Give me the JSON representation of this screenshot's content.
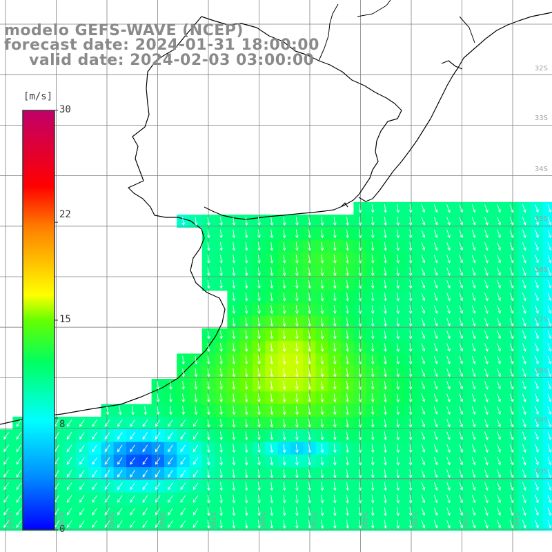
{
  "title": {
    "model": "modelo GEFS-WAVE (NCEP)",
    "forecast": "forecast date: 2024-01-31 18:00:00",
    "valid": "valid date: 2024-02-03 03:00:00"
  },
  "colorbar": {
    "unit": "[m/s]",
    "ticks": [
      "30",
      "22",
      "15",
      "8",
      "0"
    ],
    "tick_values": [
      30,
      22,
      15,
      8,
      0
    ],
    "range": [
      0,
      30
    ],
    "colors": [
      "#0000ff",
      "#00a0ff",
      "#00ffff",
      "#00ff00",
      "#ffff00",
      "#ff8000",
      "#ff0000",
      "#c0006a"
    ]
  },
  "map": {
    "variable": "wind speed",
    "lat_labels": [
      "32S",
      "33S",
      "34S",
      "35S",
      "36S",
      "37S",
      "38S",
      "39S",
      "40S"
    ],
    "lon_labels": [
      "61W",
      "60W",
      "59W",
      "58W",
      "57W",
      "56W",
      "55W",
      "54W",
      "53W",
      "52W",
      "51W"
    ],
    "land_color": "#ffffff",
    "coast_color": "#000000",
    "grid_color": "#808080",
    "arrow_color": "#ffffff",
    "arrow_direction": "south"
  }
}
